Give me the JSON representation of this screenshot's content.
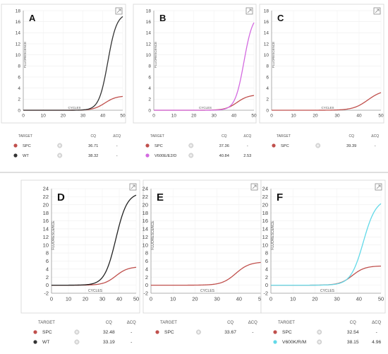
{
  "common": {
    "xlabel": "CYCLES",
    "ylabel": "FLUORESCENCE",
    "table_headers": {
      "target": "TARGET",
      "cq": "CQ",
      "dcq": "ΔCQ"
    }
  },
  "colors": {
    "spc": "#c0504d",
    "wt": "#333333",
    "v600e": "#d36ae0",
    "v600k": "#62d9e8"
  },
  "chart_data": [
    {
      "id": "A",
      "type": "line",
      "panel_label": "A",
      "xlabel": "CYCLES",
      "ylabel": "FLUORESCENCE",
      "xlim": [
        0,
        50
      ],
      "ylim": [
        0,
        18
      ],
      "xticks": [
        0,
        10,
        20,
        30,
        40,
        50
      ],
      "yticks": [
        0,
        2,
        4,
        6,
        8,
        10,
        12,
        14,
        16,
        18
      ],
      "series": [
        {
          "name": "SPC",
          "color": "#c0504d",
          "plateau": 2.6,
          "mid": 41,
          "k": 0.35
        },
        {
          "name": "WT",
          "color": "#333333",
          "plateau": 17.5,
          "mid": 42.5,
          "k": 0.45
        }
      ],
      "table": [
        {
          "target": "SPC",
          "color": "#c0504d",
          "cq": "36.71",
          "dcq": "-"
        },
        {
          "target": "WT",
          "color": "#333333",
          "cq": "38.32",
          "dcq": "-"
        }
      ]
    },
    {
      "id": "B",
      "type": "line",
      "panel_label": "B",
      "xlabel": "CYCLES",
      "ylabel": "FLUORESCENCE",
      "xlim": [
        0,
        50
      ],
      "ylim": [
        0,
        18
      ],
      "xticks": [
        0,
        10,
        20,
        30,
        40,
        50
      ],
      "yticks": [
        0,
        2,
        4,
        6,
        8,
        10,
        12,
        14,
        16,
        18
      ],
      "series": [
        {
          "name": "SPC",
          "color": "#c0504d",
          "plateau": 2.8,
          "mid": 41.5,
          "k": 0.35
        },
        {
          "name": "V600E/E2/D",
          "color": "#d36ae0",
          "plateau": 17.5,
          "mid": 45,
          "k": 0.45
        }
      ],
      "table": [
        {
          "target": "SPC",
          "color": "#c0504d",
          "cq": "37.36",
          "dcq": "-"
        },
        {
          "target": "V600E/E2/D",
          "color": "#d36ae0",
          "cq": "40.84",
          "dcq": "2.53"
        }
      ]
    },
    {
      "id": "C",
      "type": "line",
      "panel_label": "C",
      "xlabel": "CYCLES",
      "ylabel": "FLUORESCENCE",
      "xlim": [
        0,
        50
      ],
      "ylim": [
        0,
        18
      ],
      "xticks": [
        0,
        10,
        20,
        30,
        40,
        50
      ],
      "yticks": [
        0,
        2,
        4,
        6,
        8,
        10,
        12,
        14,
        16,
        18
      ],
      "series": [
        {
          "name": "SPC",
          "color": "#c0504d",
          "plateau": 3.7,
          "mid": 44,
          "k": 0.3
        }
      ],
      "table": [
        {
          "target": "SPC",
          "color": "#c0504d",
          "cq": "39.39",
          "dcq": "-"
        }
      ]
    },
    {
      "id": "D",
      "type": "line",
      "panel_label": "D",
      "xlabel": "CYCLES",
      "ylabel": "FLUORESCENCE",
      "xlim": [
        0,
        50
      ],
      "ylim": [
        -2,
        24
      ],
      "xticks": [
        0,
        10,
        20,
        30,
        40,
        50
      ],
      "yticks": [
        -2,
        0,
        2,
        4,
        6,
        8,
        10,
        12,
        14,
        16,
        18,
        20,
        22,
        24
      ],
      "series": [
        {
          "name": "SPC",
          "color": "#c0504d",
          "plateau": 4.6,
          "mid": 38,
          "k": 0.28
        },
        {
          "name": "WT",
          "color": "#222222",
          "plateau": 23,
          "mid": 38,
          "k": 0.3
        }
      ],
      "table": [
        {
          "target": "SPC",
          "color": "#c0504d",
          "cq": "32.48",
          "dcq": "-"
        },
        {
          "target": "WT",
          "color": "#333333",
          "cq": "33.19",
          "dcq": "-"
        }
      ]
    },
    {
      "id": "E",
      "type": "line",
      "panel_label": "E",
      "xlabel": "CYCLES",
      "ylabel": "FLUORESCENCE",
      "xlim": [
        0,
        50
      ],
      "ylim": [
        -2,
        24
      ],
      "xticks": [
        0,
        10,
        20,
        30,
        40,
        50
      ],
      "yticks": [
        -2,
        0,
        2,
        4,
        6,
        8,
        10,
        12,
        14,
        16,
        18,
        20,
        22,
        24
      ],
      "series": [
        {
          "name": "SPC",
          "color": "#c0504d",
          "plateau": 5.8,
          "mid": 38.5,
          "k": 0.32
        }
      ],
      "table": [
        {
          "target": "SPC",
          "color": "#c0504d",
          "cq": "33.67",
          "dcq": "-"
        }
      ]
    },
    {
      "id": "F",
      "type": "line",
      "panel_label": "F",
      "xlabel": "CYCLES",
      "ylabel": "FLUORESCENCE",
      "xlim": [
        0,
        50
      ],
      "ylim": [
        -2,
        24
      ],
      "xticks": [
        0,
        10,
        20,
        30,
        40,
        50
      ],
      "yticks": [
        -2,
        0,
        2,
        4,
        6,
        8,
        10,
        12,
        14,
        16,
        18,
        20,
        22,
        24
      ],
      "series": [
        {
          "name": "SPC",
          "color": "#c0504d",
          "plateau": 4.8,
          "mid": 37,
          "k": 0.35
        },
        {
          "name": "V600K/R/M",
          "color": "#62d9e8",
          "plateau": 21.5,
          "mid": 42,
          "k": 0.35
        }
      ],
      "table": [
        {
          "target": "SPC",
          "color": "#c0504d",
          "cq": "32.54",
          "dcq": "-"
        },
        {
          "target": "V600K/R/M",
          "color": "#62d9e8",
          "cq": "38.15",
          "dcq": "4.96"
        }
      ]
    }
  ]
}
